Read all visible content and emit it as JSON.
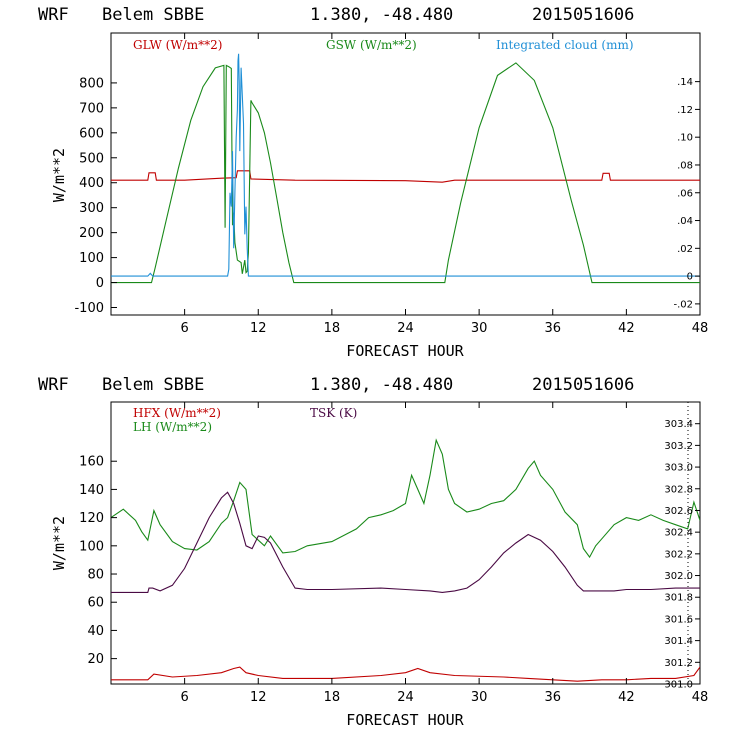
{
  "chart_data": [
    {
      "type": "line",
      "header": {
        "model": "WRF",
        "station": "Belem SBBE",
        "coords": "1.380, -48.480",
        "date": "2015051606"
      },
      "xlabel": "FORECAST HOUR",
      "ylabel": "W/m**2",
      "xlim": [
        0,
        48
      ],
      "ylim": [
        -130,
        1000
      ],
      "y2lim": [
        -0.028,
        0.175
      ],
      "xticks": [
        "6",
        "12",
        "18",
        "24",
        "30",
        "36",
        "42",
        "48"
      ],
      "xtick_values": [
        6,
        12,
        18,
        24,
        30,
        36,
        42,
        48
      ],
      "yticks": [
        "-100",
        "0",
        "100",
        "200",
        "300",
        "400",
        "500",
        "600",
        "700",
        "800"
      ],
      "ytick_values": [
        -100,
        0,
        100,
        200,
        300,
        400,
        500,
        600,
        700,
        800
      ],
      "y2ticks": [
        "-.02",
        "0",
        ".02",
        ".04",
        ".06",
        ".08",
        ".10",
        ".12",
        ".14"
      ],
      "y2tick_values": [
        -0.02,
        0,
        0.02,
        0.04,
        0.06,
        0.08,
        0.1,
        0.12,
        0.14
      ],
      "series": [
        {
          "name": "GLW (W/m**2)",
          "color": "#c00000",
          "axis": "left",
          "x": [
            0,
            3,
            3.1,
            3.6,
            3.7,
            6,
            9,
            10.2,
            10.3,
            11.3,
            11.4,
            15,
            24,
            27,
            28,
            36,
            40,
            40.1,
            40.6,
            40.7,
            48
          ],
          "y": [
            410,
            410,
            440,
            440,
            410,
            410,
            418,
            420,
            448,
            448,
            415,
            410,
            408,
            402,
            410,
            410,
            410,
            438,
            438,
            410,
            410
          ]
        },
        {
          "name": "GSW (W/m**2)",
          "color": "#1a8a1a",
          "axis": "left",
          "x": [
            0,
            3.3,
            3.6,
            4.5,
            5.5,
            6.5,
            7.5,
            8.5,
            9.2,
            9.3,
            9.4,
            9.6,
            9.8,
            9.9,
            10.0,
            10.1,
            10.3,
            10.6,
            10.7,
            10.9,
            11.0,
            11.1,
            11.2,
            11.4,
            11.5,
            12.0,
            12.5,
            13.0,
            13.5,
            14.0,
            14.5,
            14.9,
            27.2,
            27.5,
            28.5,
            30.0,
            31.5,
            33.0,
            34.5,
            36.0,
            37.5,
            38.5,
            39.2,
            48
          ],
          "y": [
            0,
            0,
            60,
            250,
            460,
            650,
            785,
            860,
            870,
            220,
            870,
            865,
            858,
            230,
            280,
            160,
            90,
            80,
            35,
            90,
            40,
            45,
            120,
            730,
            720,
            680,
            600,
            480,
            340,
            200,
            80,
            0,
            0,
            90,
            320,
            620,
            830,
            880,
            810,
            620,
            330,
            150,
            0,
            0
          ]
        },
        {
          "name": "Integrated cloud (mm)",
          "color": "#1f8fd6",
          "axis": "right",
          "x": [
            0,
            3.0,
            3.2,
            3.4,
            9.5,
            9.6,
            9.7,
            9.8,
            9.9,
            10.0,
            10.1,
            10.2,
            10.3,
            10.35,
            10.4,
            10.45,
            10.5,
            10.6,
            10.7,
            10.8,
            10.9,
            11.0,
            11.1,
            11.2,
            48
          ],
          "y": [
            0,
            0,
            0.002,
            0,
            0,
            0.005,
            0.06,
            0.05,
            0.09,
            0.02,
            0.06,
            0.1,
            0.12,
            0.155,
            0.16,
            0.14,
            0.09,
            0.15,
            0.13,
            0.11,
            0.03,
            0.05,
            0.02,
            0,
            0
          ]
        }
      ],
      "legend": [
        "GLW (W/m**2)",
        "GSW (W/m**2)",
        "Integrated cloud (mm)"
      ]
    },
    {
      "type": "line",
      "header": {
        "model": "WRF",
        "station": "Belem SBBE",
        "coords": "1.380, -48.480",
        "date": "2015051606"
      },
      "xlabel": "FORECAST HOUR",
      "ylabel": "W/m**2",
      "xlim": [
        0,
        48
      ],
      "ylim": [
        2,
        202
      ],
      "y2lim": [
        301.0,
        303.6
      ],
      "xticks": [
        "6",
        "12",
        "18",
        "24",
        "30",
        "36",
        "42",
        "48"
      ],
      "xtick_values": [
        6,
        12,
        18,
        24,
        30,
        36,
        42,
        48
      ],
      "yticks": [
        "20",
        "40",
        "60",
        "80",
        "100",
        "120",
        "140",
        "160"
      ],
      "ytick_values": [
        20,
        40,
        60,
        80,
        100,
        120,
        140,
        160
      ],
      "y2ticks": [
        "301.0",
        "301.2",
        "301.4",
        "301.6",
        "301.8",
        "302.0",
        "302.2",
        "302.4",
        "302.6",
        "302.8",
        "303.0",
        "303.2",
        "303.4"
      ],
      "y2tick_values": [
        301.0,
        301.2,
        301.4,
        301.6,
        301.8,
        302.0,
        302.2,
        302.4,
        302.6,
        302.8,
        303.0,
        303.2,
        303.4
      ],
      "series": [
        {
          "name": "HFX (W/m**2)",
          "color": "#c00000",
          "axis": "left",
          "x": [
            0,
            2,
            3,
            3.5,
            5,
            7,
            9,
            10,
            10.5,
            11,
            12,
            14,
            18,
            22,
            24,
            25,
            26,
            28,
            32,
            34,
            36,
            38,
            40,
            42,
            44,
            46,
            47.5,
            48
          ],
          "y": [
            5,
            5,
            5,
            9,
            7,
            8,
            10,
            13,
            14,
            10,
            8,
            6,
            6,
            8,
            10,
            13,
            10,
            8,
            7,
            6,
            5,
            4,
            5,
            5,
            6,
            6,
            8,
            14
          ]
        },
        {
          "name": "LH (W/m**2)",
          "color": "#1a8a1a",
          "axis": "left",
          "x": [
            0,
            1,
            2,
            2.5,
            3,
            3.5,
            4,
            5,
            6,
            7,
            8,
            9,
            9.5,
            10,
            10.5,
            11,
            11.5,
            12,
            12.5,
            13,
            14,
            15,
            16,
            18,
            20,
            21,
            22,
            23,
            24,
            24.5,
            25,
            25.5,
            26,
            26.5,
            27,
            27.5,
            28,
            29,
            30,
            31,
            32,
            33,
            34,
            34.5,
            35,
            36,
            37,
            38,
            38.5,
            39,
            39.5,
            40,
            41,
            42,
            43,
            44,
            45,
            46,
            47,
            47.5,
            48
          ],
          "y": [
            120,
            126,
            118,
            110,
            104,
            125,
            115,
            103,
            98,
            97,
            103,
            116,
            120,
            132,
            145,
            140,
            108,
            104,
            100,
            107,
            95,
            96,
            100,
            103,
            112,
            120,
            122,
            125,
            130,
            150,
            140,
            130,
            150,
            175,
            165,
            140,
            130,
            124,
            126,
            130,
            132,
            140,
            155,
            160,
            150,
            140,
            124,
            115,
            98,
            92,
            100,
            105,
            115,
            120,
            118,
            122,
            118,
            115,
            112,
            131,
            118
          ]
        },
        {
          "name": "TSK (K)",
          "color": "#4a0a44",
          "axis": "left",
          "x": [
            0,
            3,
            3.1,
            3.4,
            4,
            5,
            6,
            7,
            8,
            9,
            9.5,
            10,
            10.5,
            11,
            11.5,
            12,
            12.5,
            13,
            14,
            15,
            16,
            18,
            22,
            24,
            26,
            27,
            28,
            29,
            30,
            31,
            32,
            33,
            34,
            35,
            36,
            37,
            38,
            38.5,
            39,
            40,
            41,
            42,
            44,
            46,
            48
          ],
          "y": [
            67,
            67,
            70,
            70,
            68,
            72,
            84,
            102,
            120,
            134,
            138,
            130,
            116,
            100,
            98,
            107,
            106,
            102,
            85,
            70,
            69,
            69,
            70,
            69,
            68,
            67,
            68,
            70,
            76,
            85,
            95,
            102,
            108,
            104,
            96,
            85,
            72,
            68,
            68,
            68,
            68,
            69,
            69,
            70,
            70
          ]
        }
      ],
      "legend": [
        "HFX (W/m**2)",
        "LH (W/m**2)",
        "TSK (K)"
      ]
    }
  ]
}
